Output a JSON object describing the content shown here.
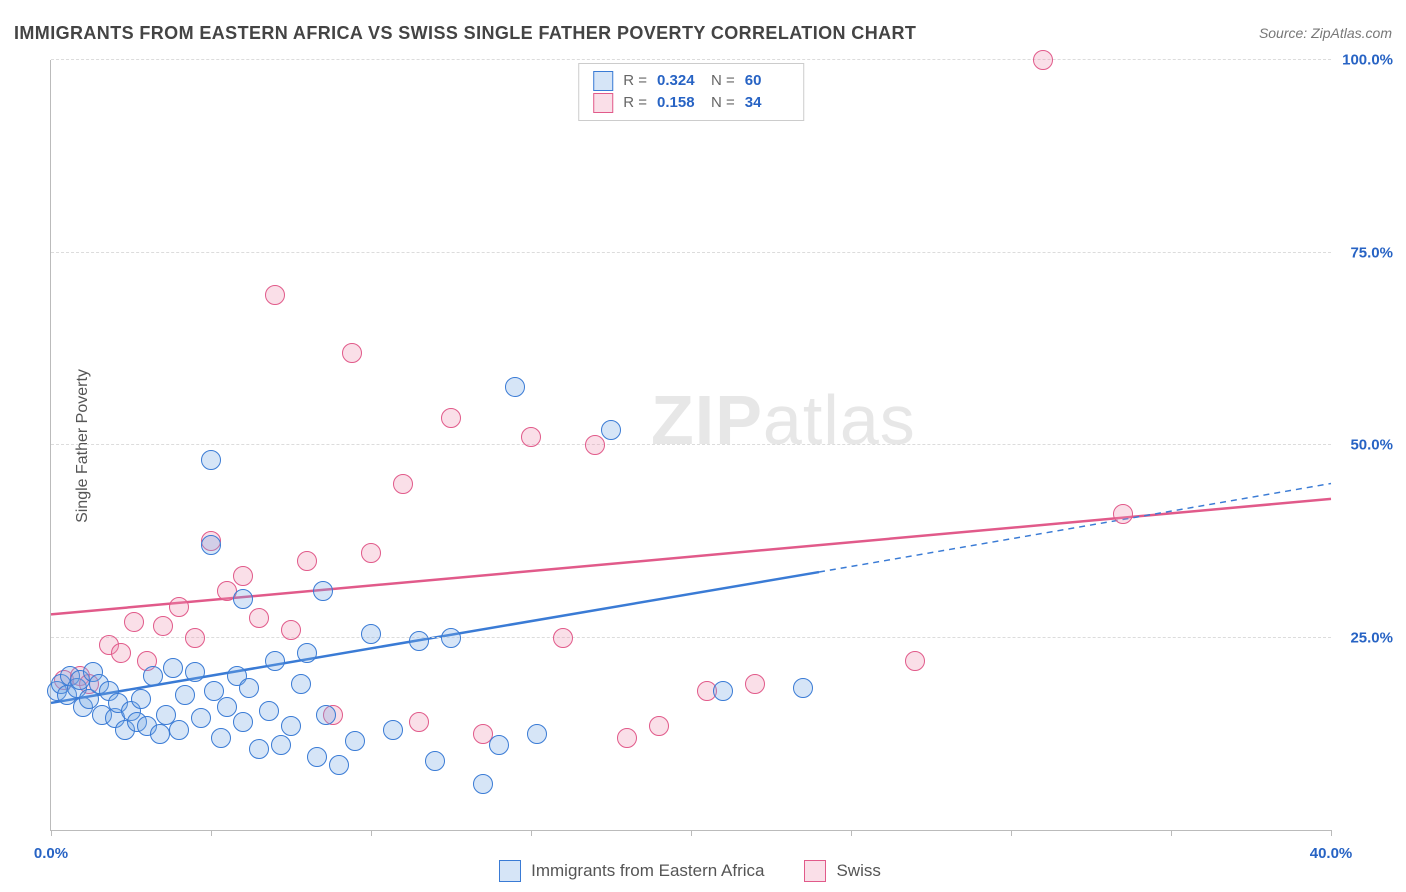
{
  "header": {
    "title": "IMMIGRANTS FROM EASTERN AFRICA VS SWISS SINGLE FATHER POVERTY CORRELATION CHART",
    "source_prefix": "Source: ",
    "source_name": "ZipAtlas.com"
  },
  "ylabel": "Single Father Poverty",
  "watermark": {
    "bold": "ZIP",
    "rest": "atlas"
  },
  "chart": {
    "type": "scatter",
    "xlim": [
      0,
      40
    ],
    "ylim": [
      0,
      100
    ],
    "xticks": [
      0,
      5,
      10,
      15,
      20,
      25,
      30,
      35,
      40
    ],
    "xtick_labels": {
      "0": "0.0%",
      "40": "40.0%"
    },
    "yticks": [
      25,
      50,
      75,
      100
    ],
    "ytick_labels": {
      "25": "25.0%",
      "50": "50.0%",
      "75": "75.0%",
      "100": "100.0%"
    },
    "grid_color": "#dcdcdc",
    "axis_color": "#bbbbbb",
    "background_color": "#ffffff",
    "tick_label_color": "#2763c4",
    "tick_label_fontsize": 15,
    "marker_radius": 10,
    "marker_border_width": 1.5,
    "marker_fill_opacity": 0.28
  },
  "series": {
    "a": {
      "label": "Immigrants from Eastern Africa",
      "color": "#3a7bd5",
      "fill": "rgba(120,170,230,0.30)",
      "R": "0.324",
      "N": "60",
      "trend": {
        "x1": 0,
        "y1": 16.5,
        "x2_solid": 24,
        "y2_solid": 33.5,
        "x2": 40,
        "y2": 45.0
      },
      "points": [
        [
          0.2,
          18
        ],
        [
          0.3,
          19
        ],
        [
          0.5,
          17.5
        ],
        [
          0.6,
          20
        ],
        [
          0.8,
          18.5
        ],
        [
          0.9,
          19.5
        ],
        [
          1.0,
          16
        ],
        [
          1.2,
          17
        ],
        [
          1.3,
          20.5
        ],
        [
          1.5,
          19
        ],
        [
          1.6,
          15
        ],
        [
          1.8,
          18
        ],
        [
          2.0,
          14.5
        ],
        [
          2.1,
          16.5
        ],
        [
          2.3,
          13
        ],
        [
          2.5,
          15.5
        ],
        [
          2.7,
          14
        ],
        [
          2.8,
          17
        ],
        [
          3.0,
          13.5
        ],
        [
          3.2,
          20
        ],
        [
          3.4,
          12.5
        ],
        [
          3.6,
          15
        ],
        [
          3.8,
          21
        ],
        [
          4.0,
          13
        ],
        [
          4.2,
          17.5
        ],
        [
          4.5,
          20.5
        ],
        [
          4.7,
          14.5
        ],
        [
          5.0,
          48
        ],
        [
          5.0,
          37
        ],
        [
          5.1,
          18
        ],
        [
          5.3,
          12
        ],
        [
          5.5,
          16
        ],
        [
          5.8,
          20
        ],
        [
          6.0,
          14
        ],
        [
          6.2,
          18.5
        ],
        [
          6.5,
          10.5
        ],
        [
          6.8,
          15.5
        ],
        [
          7.0,
          22
        ],
        [
          7.2,
          11
        ],
        [
          7.5,
          13.5
        ],
        [
          7.8,
          19
        ],
        [
          8.0,
          23
        ],
        [
          8.3,
          9.5
        ],
        [
          8.6,
          15
        ],
        [
          9.0,
          8.5
        ],
        [
          9.5,
          11.5
        ],
        [
          10.0,
          25.5
        ],
        [
          10.7,
          13
        ],
        [
          11.5,
          24.5
        ],
        [
          12.0,
          9
        ],
        [
          12.5,
          25
        ],
        [
          13.5,
          6
        ],
        [
          14.0,
          11
        ],
        [
          14.5,
          57.5
        ],
        [
          15.2,
          12.5
        ],
        [
          17.5,
          52
        ],
        [
          21.0,
          18
        ],
        [
          23.5,
          18.5
        ],
        [
          8.5,
          31
        ],
        [
          6.0,
          30
        ]
      ]
    },
    "b": {
      "label": "Swiss",
      "color": "#e15a8a",
      "fill": "rgba(240,150,180,0.30)",
      "R": "0.158",
      "N": "34",
      "trend": {
        "x1": 0,
        "y1": 28.0,
        "x2_solid": 40,
        "y2_solid": 43.0,
        "x2": 40,
        "y2": 43.0
      },
      "points": [
        [
          0.4,
          19.5
        ],
        [
          0.9,
          20
        ],
        [
          1.2,
          19
        ],
        [
          1.8,
          24
        ],
        [
          2.2,
          23
        ],
        [
          2.6,
          27
        ],
        [
          3.0,
          22
        ],
        [
          3.5,
          26.5
        ],
        [
          4.0,
          29
        ],
        [
          4.5,
          25
        ],
        [
          5.0,
          37.5
        ],
        [
          5.5,
          31
        ],
        [
          6.0,
          33
        ],
        [
          6.5,
          27.5
        ],
        [
          7.0,
          69.5
        ],
        [
          7.5,
          26
        ],
        [
          8.0,
          35
        ],
        [
          8.8,
          15
        ],
        [
          9.4,
          62
        ],
        [
          10.0,
          36
        ],
        [
          11.0,
          45
        ],
        [
          11.5,
          14
        ],
        [
          12.5,
          53.5
        ],
        [
          13.5,
          12.5
        ],
        [
          15.0,
          51
        ],
        [
          16.0,
          25
        ],
        [
          17.0,
          50
        ],
        [
          18.0,
          12
        ],
        [
          19.0,
          13.5
        ],
        [
          20.5,
          18
        ],
        [
          22.0,
          19
        ],
        [
          27.0,
          22
        ],
        [
          31.0,
          100
        ],
        [
          33.5,
          41
        ]
      ]
    }
  },
  "legend_top": {
    "r_label": "R =",
    "n_label": "N ="
  }
}
